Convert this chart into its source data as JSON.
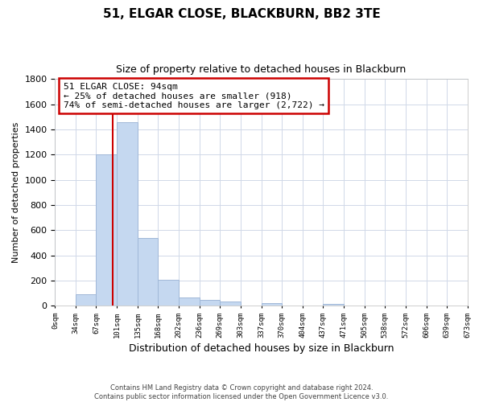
{
  "title": "51, ELGAR CLOSE, BLACKBURN, BB2 3TE",
  "subtitle": "Size of property relative to detached houses in Blackburn",
  "xlabel": "Distribution of detached houses by size in Blackburn",
  "ylabel": "Number of detached properties",
  "bar_left_edges": [
    0,
    34,
    67,
    101,
    135,
    168,
    202,
    236,
    269,
    303,
    337,
    370,
    404,
    437,
    471,
    505,
    538,
    572,
    606,
    639
  ],
  "bar_widths": [
    34,
    33,
    34,
    34,
    33,
    34,
    34,
    33,
    34,
    34,
    33,
    34,
    33,
    34,
    34,
    33,
    34,
    34,
    33,
    34
  ],
  "bar_heights": [
    0,
    90,
    1200,
    1460,
    540,
    205,
    65,
    48,
    32,
    0,
    22,
    0,
    0,
    14,
    0,
    0,
    0,
    0,
    0,
    0
  ],
  "bar_color": "#c5d8f0",
  "bar_edge_color": "#a0b8d8",
  "tick_labels": [
    "0sqm",
    "34sqm",
    "67sqm",
    "101sqm",
    "135sqm",
    "168sqm",
    "202sqm",
    "236sqm",
    "269sqm",
    "303sqm",
    "337sqm",
    "370sqm",
    "404sqm",
    "437sqm",
    "471sqm",
    "505sqm",
    "538sqm",
    "572sqm",
    "606sqm",
    "639sqm",
    "673sqm"
  ],
  "ylim": [
    0,
    1800
  ],
  "yticks": [
    0,
    200,
    400,
    600,
    800,
    1000,
    1200,
    1400,
    1600,
    1800
  ],
  "property_line_x": 94,
  "property_line_color": "#cc0000",
  "annotation_line1": "51 ELGAR CLOSE: 94sqm",
  "annotation_line2": "← 25% of detached houses are smaller (918)",
  "annotation_line3": "74% of semi-detached houses are larger (2,722) →",
  "annotation_box_color": "#ffffff",
  "annotation_box_edge": "#cc0000",
  "footer_line1": "Contains HM Land Registry data © Crown copyright and database right 2024.",
  "footer_line2": "Contains public sector information licensed under the Open Government Licence v3.0.",
  "grid_color": "#d0d8e8",
  "background_color": "#ffffff"
}
